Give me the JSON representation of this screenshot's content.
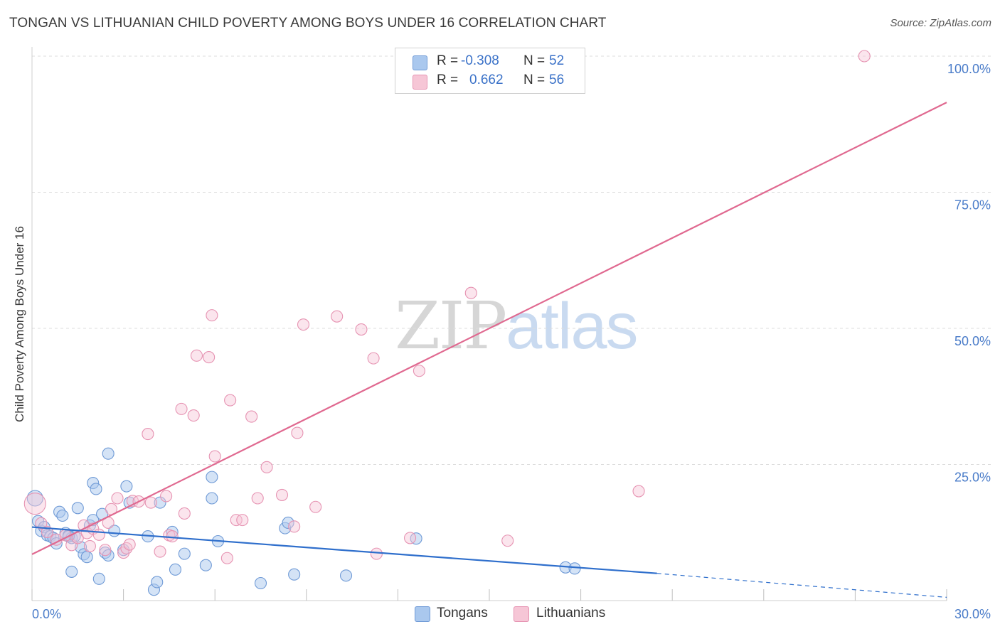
{
  "title": "TONGAN VS LITHUANIAN CHILD POVERTY AMONG BOYS UNDER 16 CORRELATION CHART",
  "source": "Source: ZipAtlas.com",
  "watermark": {
    "zip": "ZIP",
    "atlas": "atlas"
  },
  "legend": {
    "rows": [
      {
        "r_label": "R =",
        "r_value": "-0.308",
        "n_label": "N =",
        "n_value": "52"
      },
      {
        "r_label": "R =",
        "r_value": "0.662",
        "n_label": "N =",
        "n_value": "56"
      }
    ]
  },
  "bottom_legend": [
    "Tongans",
    "Lithuanians"
  ],
  "colors": {
    "tongan_fill": "#aac8ee",
    "tongan_stroke": "#6f9ad6",
    "tongan_line": "#2f6fcc",
    "lith_fill": "#f6c6d6",
    "lith_stroke": "#e693b2",
    "lith_line": "#e06990",
    "tick_text": "#4a7cc9",
    "grid": "#dcdcdc"
  },
  "chart_data": {
    "type": "scatter",
    "title": "TONGAN VS LITHUANIAN CHILD POVERTY AMONG BOYS UNDER 16 CORRELATION CHART",
    "xlabel": "",
    "ylabel": "Child Poverty Among Boys Under 16",
    "xlim": [
      0,
      30
    ],
    "ylim": [
      0,
      100
    ],
    "x_tick_labels": [
      "0.0%",
      "30.0%"
    ],
    "y_ticks": [
      25,
      50,
      75,
      100
    ],
    "y_tick_labels": [
      "25.0%",
      "50.0%",
      "75.0%",
      "100.0%"
    ],
    "grid": true,
    "series": [
      {
        "name": "Tongans",
        "color": "#6f9ad6",
        "r": -0.308,
        "n": 52,
        "trend": {
          "x": [
            0,
            20.5
          ],
          "y": [
            13.5,
            5.0
          ],
          "dashed_to": [
            30,
            0.6
          ]
        },
        "points": [
          [
            0.1,
            18.8
          ],
          [
            0.2,
            14.6
          ],
          [
            0.3,
            12.8
          ],
          [
            0.4,
            13.5
          ],
          [
            0.5,
            12.0
          ],
          [
            0.6,
            11.8
          ],
          [
            0.7,
            11.5
          ],
          [
            0.8,
            10.5
          ],
          [
            0.9,
            16.3
          ],
          [
            1.0,
            15.6
          ],
          [
            1.1,
            12.4
          ],
          [
            1.2,
            12.0
          ],
          [
            1.3,
            11.5
          ],
          [
            1.3,
            5.3
          ],
          [
            1.4,
            11.8
          ],
          [
            1.5,
            17.0
          ],
          [
            1.6,
            9.8
          ],
          [
            1.7,
            8.5
          ],
          [
            1.8,
            8.0
          ],
          [
            1.9,
            13.8
          ],
          [
            2.0,
            14.8
          ],
          [
            2.0,
            21.6
          ],
          [
            2.1,
            20.5
          ],
          [
            2.2,
            4.0
          ],
          [
            2.3,
            15.9
          ],
          [
            2.4,
            8.8
          ],
          [
            2.5,
            8.3
          ],
          [
            2.5,
            27.0
          ],
          [
            2.7,
            12.8
          ],
          [
            3.0,
            9.3
          ],
          [
            3.1,
            21.0
          ],
          [
            3.2,
            18.0
          ],
          [
            3.8,
            11.8
          ],
          [
            4.0,
            2.0
          ],
          [
            4.1,
            3.4
          ],
          [
            4.2,
            18.0
          ],
          [
            4.6,
            12.6
          ],
          [
            4.7,
            5.7
          ],
          [
            5.0,
            8.6
          ],
          [
            5.7,
            6.5
          ],
          [
            5.9,
            22.7
          ],
          [
            5.9,
            18.8
          ],
          [
            6.1,
            10.9
          ],
          [
            7.5,
            3.2
          ],
          [
            8.3,
            13.3
          ],
          [
            8.4,
            14.3
          ],
          [
            8.6,
            4.8
          ],
          [
            10.3,
            4.6
          ],
          [
            12.6,
            11.4
          ],
          [
            17.5,
            6.1
          ],
          [
            17.8,
            5.9
          ],
          [
            1.2,
            11.8
          ]
        ]
      },
      {
        "name": "Lithuanians",
        "color": "#e693b2",
        "r": 0.662,
        "n": 56,
        "trend": {
          "x": [
            0,
            30
          ],
          "y": [
            8.5,
            91.5
          ]
        },
        "points": [
          [
            0.1,
            17.8
          ],
          [
            0.3,
            14.2
          ],
          [
            0.5,
            12.6
          ],
          [
            0.8,
            11.2
          ],
          [
            1.1,
            12.0
          ],
          [
            1.3,
            10.2
          ],
          [
            1.5,
            11.5
          ],
          [
            1.7,
            13.8
          ],
          [
            1.8,
            12.4
          ],
          [
            1.9,
            10.0
          ],
          [
            2.0,
            13.2
          ],
          [
            2.2,
            12.1
          ],
          [
            2.4,
            9.3
          ],
          [
            2.5,
            14.3
          ],
          [
            2.6,
            16.8
          ],
          [
            2.8,
            18.8
          ],
          [
            3.0,
            8.8
          ],
          [
            3.1,
            9.6
          ],
          [
            3.2,
            10.3
          ],
          [
            3.3,
            18.3
          ],
          [
            3.5,
            18.2
          ],
          [
            3.8,
            30.6
          ],
          [
            3.9,
            18.0
          ],
          [
            4.2,
            9.0
          ],
          [
            4.4,
            19.2
          ],
          [
            4.5,
            12.0
          ],
          [
            4.6,
            11.8
          ],
          [
            4.9,
            35.2
          ],
          [
            5.0,
            16.0
          ],
          [
            5.3,
            34.0
          ],
          [
            5.4,
            45.0
          ],
          [
            5.8,
            44.7
          ],
          [
            5.9,
            52.4
          ],
          [
            6.0,
            26.5
          ],
          [
            6.4,
            7.8
          ],
          [
            6.5,
            36.8
          ],
          [
            6.7,
            14.8
          ],
          [
            6.9,
            14.8
          ],
          [
            7.2,
            33.8
          ],
          [
            7.4,
            18.8
          ],
          [
            7.7,
            24.5
          ],
          [
            8.2,
            19.4
          ],
          [
            8.6,
            13.6
          ],
          [
            8.7,
            30.8
          ],
          [
            8.9,
            50.7
          ],
          [
            9.3,
            17.2
          ],
          [
            10.0,
            52.2
          ],
          [
            10.8,
            49.8
          ],
          [
            11.2,
            44.5
          ],
          [
            11.3,
            8.6
          ],
          [
            12.4,
            11.5
          ],
          [
            12.7,
            42.2
          ],
          [
            14.4,
            56.5
          ],
          [
            15.6,
            11.0
          ],
          [
            19.9,
            20.1
          ],
          [
            27.3,
            100.0
          ]
        ]
      }
    ]
  }
}
